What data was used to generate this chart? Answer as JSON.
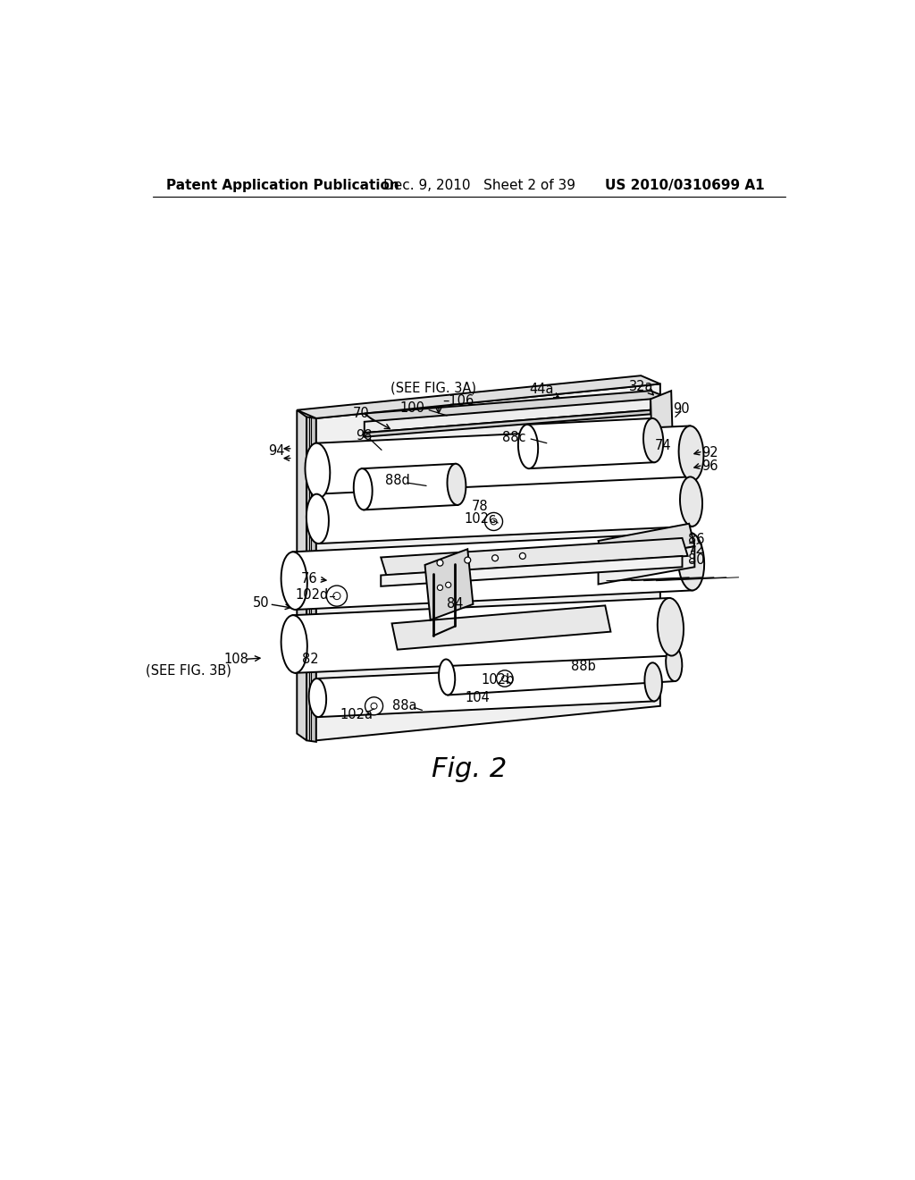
{
  "background_color": "#ffffff",
  "header_left": "Patent Application Publication",
  "header_mid": "Dec. 9, 2010   Sheet 2 of 39",
  "header_right": "US 2010/0310699 A1",
  "fig_label": "Fig. 2",
  "header_fontsize": 11,
  "label_fontsize": 10.5,
  "fig_label_fontsize": 22
}
